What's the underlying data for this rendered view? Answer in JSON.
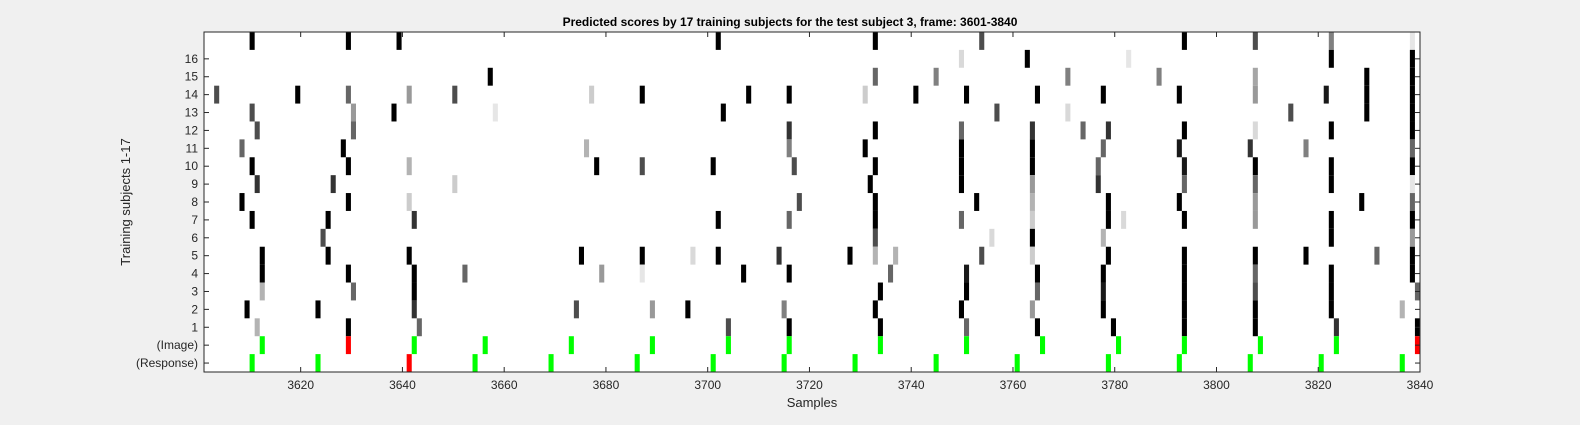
{
  "chart_data": {
    "type": "heatmap",
    "title": "Predicted scores by 17 training subjects for the test subject 3, frame: 3601-3840",
    "xlabel": "Samples",
    "ylabel": "Training subjects 1-17",
    "xlim": [
      3601,
      3840
    ],
    "xticks": [
      3620,
      3640,
      3660,
      3680,
      3700,
      3720,
      3740,
      3760,
      3780,
      3800,
      3820,
      3840
    ],
    "ytick_labels": [
      "16",
      "15",
      "14",
      "13",
      "12",
      "11",
      "10",
      "9",
      "8",
      "7",
      "6",
      "5",
      "4",
      "3",
      "2",
      "1",
      "(Image)",
      "(Response)"
    ],
    "grid": false,
    "legend": "none",
    "colors": {
      "background": "#ffffff",
      "score_high": "#000000",
      "image_onset": "#00ff00",
      "response_error": "#ff0000"
    },
    "rows": [
      {
        "row": 17,
        "marks": [
          [
            3610,
            1
          ],
          [
            3629,
            1
          ],
          [
            3639,
            1
          ],
          [
            3702,
            1
          ],
          [
            3733,
            1
          ],
          [
            3754,
            0.7
          ],
          [
            3794,
            1
          ],
          [
            3808,
            0.7
          ],
          [
            3823,
            0.5
          ],
          [
            3839,
            0.1
          ]
        ]
      },
      {
        "row": 16,
        "marks": [
          [
            3750,
            0.15
          ],
          [
            3763,
            1
          ],
          [
            3783,
            0.1
          ],
          [
            3823,
            1
          ],
          [
            3839,
            1
          ]
        ]
      },
      {
        "row": 15,
        "marks": [
          [
            3657,
            1
          ],
          [
            3733,
            0.6
          ],
          [
            3745,
            0.5
          ],
          [
            3771,
            0.5
          ],
          [
            3789,
            0.5
          ],
          [
            3808,
            0.35
          ],
          [
            3830,
            1
          ],
          [
            3839,
            1
          ]
        ]
      },
      {
        "row": 14,
        "marks": [
          [
            3603,
            0.7
          ],
          [
            3619,
            1
          ],
          [
            3629,
            0.6
          ],
          [
            3641,
            0.4
          ],
          [
            3650,
            0.7
          ],
          [
            3677,
            0.2
          ],
          [
            3687,
            1
          ],
          [
            3708,
            1
          ],
          [
            3716,
            1
          ],
          [
            3731,
            0.2
          ],
          [
            3741,
            1
          ],
          [
            3751,
            1
          ],
          [
            3765,
            1
          ],
          [
            3778,
            1
          ],
          [
            3793,
            1
          ],
          [
            3808,
            0.4
          ],
          [
            3822,
            0.9
          ],
          [
            3830,
            1
          ],
          [
            3839,
            1
          ]
        ]
      },
      {
        "row": 13,
        "marks": [
          [
            3610,
            0.7
          ],
          [
            3630,
            0.4
          ],
          [
            3638,
            1
          ],
          [
            3658,
            0.1
          ],
          [
            3703,
            1
          ],
          [
            3757,
            0.7
          ],
          [
            3771,
            0.15
          ],
          [
            3815,
            0.7
          ],
          [
            3830,
            1
          ],
          [
            3839,
            1
          ]
        ]
      },
      {
        "row": 12,
        "marks": [
          [
            3611,
            0.7
          ],
          [
            3630,
            0.6
          ],
          [
            3716,
            0.8
          ],
          [
            3733,
            1
          ],
          [
            3750,
            0.6
          ],
          [
            3764,
            0.8
          ],
          [
            3774,
            0.6
          ],
          [
            3779,
            0.8
          ],
          [
            3794,
            1
          ],
          [
            3808,
            0.15
          ],
          [
            3823,
            1
          ],
          [
            3839,
            1
          ]
        ]
      },
      {
        "row": 11,
        "marks": [
          [
            3608,
            0.6
          ],
          [
            3628,
            1
          ],
          [
            3676,
            0.3
          ],
          [
            3716,
            0.5
          ],
          [
            3731,
            1
          ],
          [
            3750,
            1
          ],
          [
            3764,
            1
          ],
          [
            3778,
            0.6
          ],
          [
            3793,
            0.9
          ],
          [
            3807,
            0.8
          ],
          [
            3818,
            0.5
          ],
          [
            3839,
            0.6
          ]
        ]
      },
      {
        "row": 10,
        "marks": [
          [
            3610,
            1
          ],
          [
            3629,
            1
          ],
          [
            3641,
            0.3
          ],
          [
            3678,
            1
          ],
          [
            3687,
            0.7
          ],
          [
            3701,
            1
          ],
          [
            3717,
            0.7
          ],
          [
            3733,
            1
          ],
          [
            3750,
            1
          ],
          [
            3764,
            1
          ],
          [
            3777,
            0.6
          ],
          [
            3794,
            0.9
          ],
          [
            3808,
            1
          ],
          [
            3823,
            1
          ],
          [
            3839,
            1
          ]
        ]
      },
      {
        "row": 9,
        "marks": [
          [
            3611,
            0.8
          ],
          [
            3626,
            0.8
          ],
          [
            3650,
            0.2
          ],
          [
            3732,
            1
          ],
          [
            3750,
            1
          ],
          [
            3764,
            0.4
          ],
          [
            3777,
            0.8
          ],
          [
            3794,
            0.6
          ],
          [
            3808,
            0.6
          ],
          [
            3823,
            1
          ],
          [
            3839,
            0.1
          ]
        ]
      },
      {
        "row": 8,
        "marks": [
          [
            3608,
            1
          ],
          [
            3629,
            1
          ],
          [
            3641,
            0.2
          ],
          [
            3718,
            0.7
          ],
          [
            3733,
            1
          ],
          [
            3753,
            1
          ],
          [
            3764,
            0.3
          ],
          [
            3779,
            1
          ],
          [
            3793,
            1
          ],
          [
            3808,
            0.4
          ],
          [
            3829,
            1
          ],
          [
            3839,
            0.6
          ]
        ]
      },
      {
        "row": 7,
        "marks": [
          [
            3610,
            1
          ],
          [
            3625,
            1
          ],
          [
            3642,
            0.8
          ],
          [
            3702,
            1
          ],
          [
            3716,
            0.6
          ],
          [
            3733,
            1
          ],
          [
            3750,
            0.6
          ],
          [
            3764,
            0.2
          ],
          [
            3779,
            1
          ],
          [
            3782,
            0.15
          ],
          [
            3794,
            1
          ],
          [
            3808,
            0.4
          ],
          [
            3823,
            1
          ],
          [
            3839,
            1
          ]
        ]
      },
      {
        "row": 6,
        "marks": [
          [
            3624,
            0.7
          ],
          [
            3733,
            0.7
          ],
          [
            3756,
            0.15
          ],
          [
            3764,
            1
          ],
          [
            3778,
            0.3
          ],
          [
            3823,
            1
          ],
          [
            3839,
            0.4
          ]
        ]
      },
      {
        "row": 5,
        "marks": [
          [
            3612,
            1
          ],
          [
            3625,
            1
          ],
          [
            3641,
            1
          ],
          [
            3675,
            1
          ],
          [
            3687,
            1
          ],
          [
            3697,
            0.15
          ],
          [
            3702,
            1
          ],
          [
            3714,
            0.8
          ],
          [
            3728,
            1
          ],
          [
            3733,
            0.3
          ],
          [
            3737,
            0.3
          ],
          [
            3754,
            0.7
          ],
          [
            3764,
            0.2
          ],
          [
            3779,
            1
          ],
          [
            3794,
            1
          ],
          [
            3808,
            1
          ],
          [
            3818,
            1
          ],
          [
            3832,
            0.6
          ],
          [
            3839,
            1
          ]
        ]
      },
      {
        "row": 4,
        "marks": [
          [
            3612,
            1
          ],
          [
            3629,
            1
          ],
          [
            3642,
            1
          ],
          [
            3652,
            0.6
          ],
          [
            3679,
            0.4
          ],
          [
            3687,
            0.1
          ],
          [
            3707,
            1
          ],
          [
            3716,
            1
          ],
          [
            3736,
            0.6
          ],
          [
            3751,
            0.9
          ],
          [
            3765,
            1
          ],
          [
            3778,
            1
          ],
          [
            3794,
            1
          ],
          [
            3808,
            0.6
          ],
          [
            3823,
            1
          ],
          [
            3839,
            1
          ]
        ]
      },
      {
        "row": 3,
        "marks": [
          [
            3612,
            0.3
          ],
          [
            3630,
            0.6
          ],
          [
            3642,
            1
          ],
          [
            3734,
            1
          ],
          [
            3751,
            1
          ],
          [
            3765,
            0.6
          ],
          [
            3778,
            0.9
          ],
          [
            3794,
            1
          ],
          [
            3808,
            0.7
          ],
          [
            3823,
            1
          ],
          [
            3840,
            0.6
          ]
        ]
      },
      {
        "row": 2,
        "marks": [
          [
            3609,
            1
          ],
          [
            3623,
            1
          ],
          [
            3642,
            0.8
          ],
          [
            3674,
            0.7
          ],
          [
            3689,
            0.4
          ],
          [
            3696,
            1
          ],
          [
            3715,
            0.5
          ],
          [
            3733,
            1
          ],
          [
            3750,
            1
          ],
          [
            3764,
            0.4
          ],
          [
            3778,
            1
          ],
          [
            3794,
            1
          ],
          [
            3808,
            1
          ],
          [
            3823,
            1
          ],
          [
            3837,
            0.3
          ]
        ]
      },
      {
        "row": 1,
        "marks": [
          [
            3611,
            0.3
          ],
          [
            3629,
            1
          ],
          [
            3643,
            0.6
          ],
          [
            3704,
            0.7
          ],
          [
            3716,
            1
          ],
          [
            3734,
            1
          ],
          [
            3751,
            0.6
          ],
          [
            3765,
            1
          ],
          [
            3780,
            1
          ],
          [
            3794,
            1
          ],
          [
            3808,
            1
          ],
          [
            3824,
            0.8
          ],
          [
            3840,
            1
          ]
        ]
      },
      {
        "row": "(Image)",
        "marks": [
          [
            3612,
            "green"
          ],
          [
            3629,
            "red"
          ],
          [
            3642,
            "green"
          ],
          [
            3656,
            "green"
          ],
          [
            3673,
            "green"
          ],
          [
            3689,
            "green"
          ],
          [
            3704,
            "green"
          ],
          [
            3716,
            "green"
          ],
          [
            3734,
            "green"
          ],
          [
            3751,
            "green"
          ],
          [
            3766,
            "green"
          ],
          [
            3781,
            "green"
          ],
          [
            3794,
            "green"
          ],
          [
            3809,
            "green"
          ],
          [
            3824,
            "green"
          ],
          [
            3840,
            "red"
          ]
        ]
      },
      {
        "row": "(Response)",
        "marks": [
          [
            3610,
            "green"
          ],
          [
            3623,
            "green"
          ],
          [
            3641,
            "red"
          ],
          [
            3654,
            "green"
          ],
          [
            3669,
            "green"
          ],
          [
            3686,
            "green"
          ],
          [
            3701,
            "green"
          ],
          [
            3715,
            "green"
          ],
          [
            3729,
            "green"
          ],
          [
            3745,
            "green"
          ],
          [
            3761,
            "green"
          ],
          [
            3779,
            "green"
          ],
          [
            3793,
            "green"
          ],
          [
            3807,
            "green"
          ],
          [
            3821,
            "green"
          ],
          [
            3837,
            "green"
          ]
        ]
      }
    ]
  }
}
